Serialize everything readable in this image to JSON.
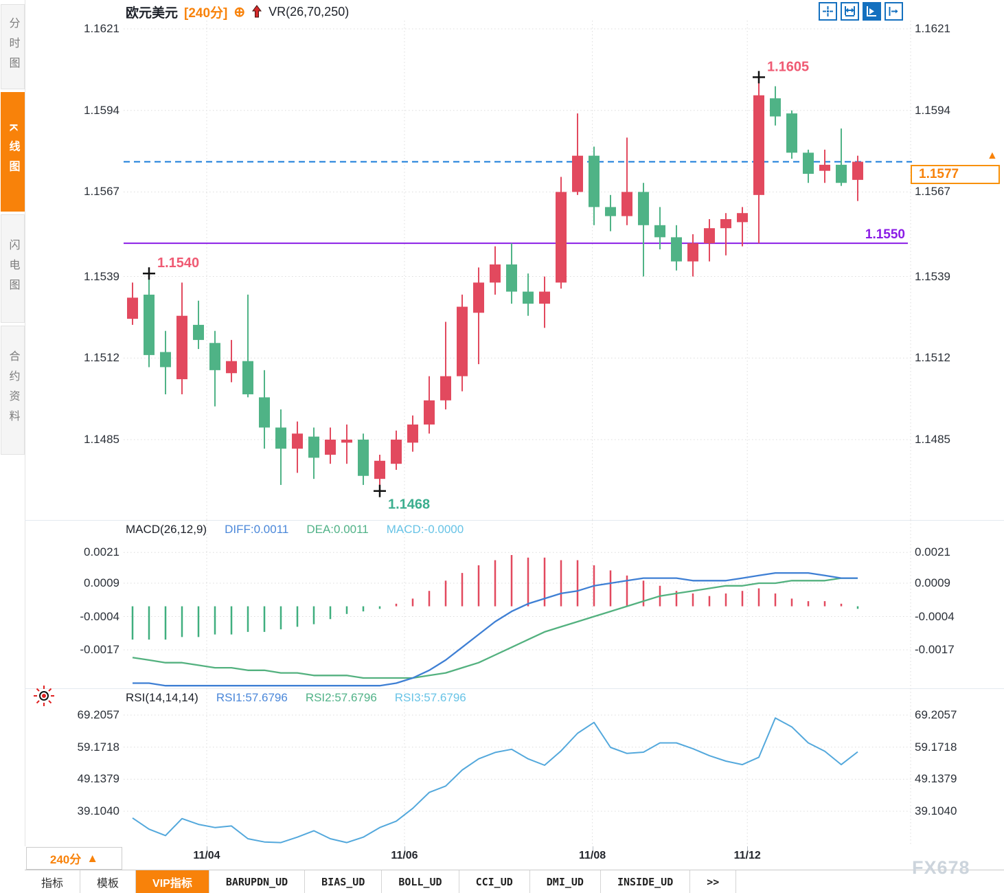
{
  "header": {
    "symbol": "欧元美元",
    "period": "[240分]",
    "plus_icon": "⊕",
    "indicator": "VR(26,70,250)",
    "toolbar_icons": [
      "crosshair-move-icon",
      "axis-range-icon",
      "auto-scale-icon",
      "pan-right-icon"
    ]
  },
  "sidebar": {
    "items": [
      {
        "label": "分时图",
        "active": false
      },
      {
        "label": "K线图",
        "active": true
      },
      {
        "label": "闪电图",
        "active": false
      },
      {
        "label": "合约资料",
        "active": false
      }
    ]
  },
  "colors": {
    "up": "#e2495e",
    "down": "#4fb386",
    "accent_orange": "#f8820a",
    "dashed_line": "#177bd9",
    "support_line": "#8a1be6",
    "high_label": "#ef5a73",
    "low_label": "#3bae8e",
    "diff_line": "#3e7fd4",
    "dea_line": "#53b17f",
    "rsi_line": "#53a8dc",
    "hist_pos": "#e2495e",
    "hist_neg": "#3fae7e",
    "toolbar_blue": "#1470bf"
  },
  "chart_data": [
    {
      "type": "candlestick",
      "title": "欧元美元 [240分] VR(26,70,250)",
      "ytick_labels": [
        "1.1621",
        "1.1594",
        "1.1567",
        "1.1539",
        "1.1512",
        "1.1485"
      ],
      "ylim": [
        1.146,
        1.1624
      ],
      "xticks": [
        {
          "label": "11/04",
          "i": 4.5
        },
        {
          "label": "11/06",
          "i": 16.5
        },
        {
          "label": "11/08",
          "i": 27.9
        },
        {
          "label": "11/12",
          "i": 37.3
        }
      ],
      "candles_ohlc": [
        [
          1.1525,
          1.1537,
          1.1523,
          1.1532
        ],
        [
          1.1533,
          1.154,
          1.1509,
          1.1513
        ],
        [
          1.1514,
          1.1521,
          1.15,
          1.1509
        ],
        [
          1.1505,
          1.1537,
          1.15,
          1.1526
        ],
        [
          1.1523,
          1.1531,
          1.1515,
          1.1518
        ],
        [
          1.1517,
          1.1521,
          1.1496,
          1.1508
        ],
        [
          1.1507,
          1.1518,
          1.1504,
          1.1511
        ],
        [
          1.1511,
          1.1533,
          1.1499,
          1.15
        ],
        [
          1.1499,
          1.1508,
          1.1482,
          1.1489
        ],
        [
          1.1489,
          1.1495,
          1.147,
          1.1482
        ],
        [
          1.1482,
          1.1491,
          1.1474,
          1.1487
        ],
        [
          1.1486,
          1.1489,
          1.1472,
          1.1479
        ],
        [
          1.148,
          1.1489,
          1.1477,
          1.1485
        ],
        [
          1.1484,
          1.149,
          1.1477,
          1.1485
        ],
        [
          1.1485,
          1.1487,
          1.147,
          1.1473
        ],
        [
          1.1472,
          1.148,
          1.1468,
          1.1478
        ],
        [
          1.1477,
          1.1488,
          1.1475,
          1.1485
        ],
        [
          1.1484,
          1.1493,
          1.1481,
          1.149
        ],
        [
          1.149,
          1.1506,
          1.1487,
          1.1498
        ],
        [
          1.1498,
          1.1524,
          1.1495,
          1.1506
        ],
        [
          1.1506,
          1.1533,
          1.1501,
          1.1529
        ],
        [
          1.1527,
          1.1542,
          1.151,
          1.1537
        ],
        [
          1.1537,
          1.1549,
          1.1533,
          1.1543
        ],
        [
          1.1543,
          1.155,
          1.153,
          1.1534
        ],
        [
          1.1534,
          1.154,
          1.1526,
          1.153
        ],
        [
          1.153,
          1.1539,
          1.1522,
          1.1534
        ],
        [
          1.1537,
          1.1572,
          1.1535,
          1.1567
        ],
        [
          1.1567,
          1.1593,
          1.1566,
          1.1579
        ],
        [
          1.1579,
          1.1582,
          1.1556,
          1.1562
        ],
        [
          1.1562,
          1.1566,
          1.1554,
          1.1559
        ],
        [
          1.1559,
          1.1585,
          1.1556,
          1.1567
        ],
        [
          1.1567,
          1.157,
          1.1539,
          1.1556
        ],
        [
          1.1556,
          1.1562,
          1.1548,
          1.1552
        ],
        [
          1.1552,
          1.1556,
          1.1541,
          1.1544
        ],
        [
          1.1544,
          1.1553,
          1.1539,
          1.155
        ],
        [
          1.155,
          1.1558,
          1.1544,
          1.1555
        ],
        [
          1.1555,
          1.156,
          1.1546,
          1.1558
        ],
        [
          1.1557,
          1.1562,
          1.1549,
          1.156
        ],
        [
          1.1566,
          1.1605,
          1.155,
          1.1599
        ],
        [
          1.1598,
          1.1602,
          1.1589,
          1.1592
        ],
        [
          1.1593,
          1.1594,
          1.1578,
          1.158
        ],
        [
          1.158,
          1.1581,
          1.157,
          1.1573
        ],
        [
          1.1574,
          1.1581,
          1.157,
          1.1576
        ],
        [
          1.1576,
          1.1588,
          1.1569,
          1.157
        ],
        [
          1.1571,
          1.1579,
          1.1564,
          1.1577
        ]
      ],
      "annotations": [
        {
          "text": "1.1540",
          "index": 1,
          "at": "high"
        },
        {
          "text": "1.1468",
          "index": 15,
          "at": "low"
        },
        {
          "text": "1.1605",
          "index": 38,
          "at": "high"
        }
      ],
      "hlines": [
        {
          "value": 1.1577,
          "label": "1.1577",
          "style": "dashed"
        },
        {
          "value": 1.155,
          "label": "1.1550",
          "style": "solid"
        }
      ]
    },
    {
      "type": "bar",
      "name": "MACD",
      "params": "MACD(26,12,9)",
      "value_labels": {
        "diff": "DIFF:0.0011",
        "dea": "DEA:0.0011",
        "macd": "MACD:-0.0000"
      },
      "ytick_labels": [
        "0.0021",
        "0.0009",
        "-0.0004",
        "-0.0017"
      ],
      "histogram": [
        -0.0013,
        -0.0013,
        -0.0013,
        -0.0012,
        -0.0012,
        -0.0011,
        -0.0011,
        -0.001,
        -0.001,
        -0.0009,
        -0.0008,
        -0.0007,
        -0.0005,
        -0.0003,
        -0.0002,
        -0.0001,
        0.0001,
        0.0003,
        0.0006,
        0.001,
        0.0013,
        0.0016,
        0.0018,
        0.002,
        0.0019,
        0.0019,
        0.0018,
        0.0018,
        0.0016,
        0.0014,
        0.0012,
        0.001,
        0.0008,
        0.0006,
        0.0005,
        0.0004,
        0.0005,
        0.0006,
        0.0007,
        0.0005,
        0.0003,
        0.0002,
        0.0002,
        0.0001,
        -0.0001
      ],
      "series": [
        {
          "name": "DIFF",
          "values": [
            -0.003,
            -0.003,
            -0.0031,
            -0.0031,
            -0.0031,
            -0.0031,
            -0.0031,
            -0.0031,
            -0.0031,
            -0.0031,
            -0.0031,
            -0.0031,
            -0.0031,
            -0.0031,
            -0.0031,
            -0.0031,
            -0.003,
            -0.0028,
            -0.0025,
            -0.0021,
            -0.0016,
            -0.0011,
            -0.0006,
            -0.0002,
            0.0001,
            0.0003,
            0.0005,
            0.0006,
            0.0008,
            0.0009,
            0.001,
            0.0011,
            0.0011,
            0.0011,
            0.001,
            0.001,
            0.001,
            0.0011,
            0.0012,
            0.0013,
            0.0013,
            0.0013,
            0.0012,
            0.0011,
            0.0011
          ]
        },
        {
          "name": "DEA",
          "values": [
            -0.002,
            -0.0021,
            -0.0022,
            -0.0022,
            -0.0023,
            -0.0024,
            -0.0024,
            -0.0025,
            -0.0025,
            -0.0026,
            -0.0026,
            -0.0027,
            -0.0027,
            -0.0027,
            -0.0028,
            -0.0028,
            -0.0028,
            -0.0028,
            -0.0027,
            -0.0026,
            -0.0024,
            -0.0022,
            -0.0019,
            -0.0016,
            -0.0013,
            -0.001,
            -0.0008,
            -0.0006,
            -0.0004,
            -0.0002,
            0.0,
            0.0002,
            0.0004,
            0.0005,
            0.0006,
            0.0007,
            0.0008,
            0.0008,
            0.0009,
            0.0009,
            0.001,
            0.001,
            0.001,
            0.0011,
            0.0011
          ]
        }
      ]
    },
    {
      "type": "line",
      "name": "RSI",
      "params": "RSI(14,14,14)",
      "value_labels": {
        "rsi1": "RSI1:57.6796",
        "rsi2": "RSI2:57.6796",
        "rsi3": "RSI3:57.6796"
      },
      "ytick_labels": [
        "69.2057",
        "59.1718",
        "49.1379",
        "39.1040"
      ],
      "values": [
        37.0,
        33.5,
        31.5,
        36.8,
        35.0,
        34.0,
        34.5,
        30.5,
        29.5,
        29.3,
        31.0,
        33.0,
        30.5,
        29.3,
        31.0,
        34.0,
        36.0,
        40.0,
        45.0,
        47.0,
        52.0,
        55.5,
        57.5,
        58.5,
        55.5,
        53.5,
        58.0,
        63.5,
        66.9,
        59.1,
        57.2,
        57.6,
        60.5,
        60.5,
        58.7,
        56.5,
        54.8,
        53.7,
        56.0,
        68.3,
        65.5,
        60.5,
        57.9,
        53.7,
        57.7
      ]
    }
  ],
  "xaxis": {
    "period_button": "240分",
    "period_arrow": "▲"
  },
  "price_tag": {
    "value": "1.1577",
    "arrow": "▲"
  },
  "tabs": [
    {
      "label": "指标",
      "mono": false,
      "accent": false
    },
    {
      "label": "模板",
      "mono": false,
      "accent": false
    },
    {
      "label": "VIP指标",
      "mono": false,
      "accent": true
    },
    {
      "label": "BARUPDN_UD",
      "mono": true,
      "accent": false
    },
    {
      "label": "BIAS_UD",
      "mono": true,
      "accent": false
    },
    {
      "label": "BOLL_UD",
      "mono": true,
      "accent": false
    },
    {
      "label": "CCI_UD",
      "mono": true,
      "accent": false
    },
    {
      "label": "DMI_UD",
      "mono": true,
      "accent": false
    },
    {
      "label": "INSIDE_UD",
      "mono": true,
      "accent": false
    },
    {
      "label": ">>",
      "mono": true,
      "accent": false
    }
  ],
  "watermark": "FX678"
}
